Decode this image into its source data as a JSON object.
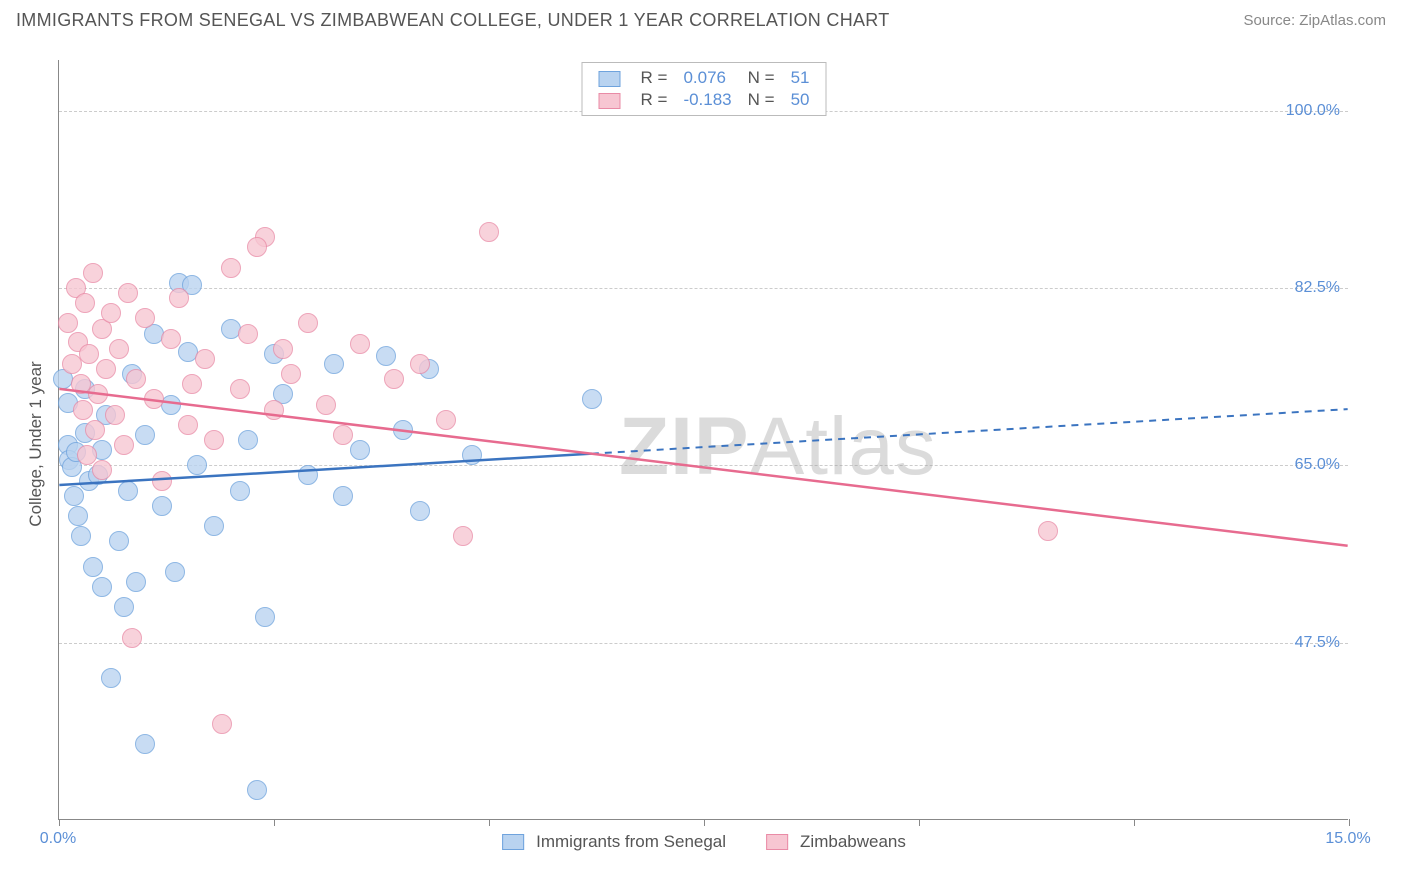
{
  "title": "IMMIGRANTS FROM SENEGAL VS ZIMBABWEAN COLLEGE, UNDER 1 YEAR CORRELATION CHART",
  "source": "Source: ZipAtlas.com",
  "ylabel": "College, Under 1 year",
  "watermark_bold": "ZIP",
  "watermark_rest": "Atlas",
  "chart": {
    "type": "scatter",
    "xlim": [
      0,
      15
    ],
    "ylim": [
      30,
      105
    ],
    "x_tick_positions": [
      0,
      2.5,
      5,
      7.5,
      10,
      12.5,
      15
    ],
    "x_tick_labels": [
      "0.0%",
      "",
      "",
      "",
      "",
      "",
      "15.0%"
    ],
    "y_gridlines": [
      47.5,
      65.0,
      82.5,
      100.0
    ],
    "y_tick_labels": [
      "47.5%",
      "65.0%",
      "82.5%",
      "100.0%"
    ],
    "background_color": "#ffffff",
    "grid_color": "#cccccc",
    "axis_color": "#888888",
    "series": [
      {
        "name": "Immigrants from Senegal",
        "fill": "#b9d3f0",
        "stroke": "#6fa3dd",
        "line_color": "#3b74c0",
        "R": "0.076",
        "N": "51",
        "trend": {
          "x1": 0,
          "y1": 63.0,
          "x2": 15,
          "y2": 70.5,
          "solid_until_x": 6.2
        },
        "points": [
          [
            0.05,
            73.5
          ],
          [
            0.1,
            67.0
          ],
          [
            0.1,
            71.2
          ],
          [
            0.12,
            65.5
          ],
          [
            0.15,
            64.8
          ],
          [
            0.18,
            62.0
          ],
          [
            0.2,
            66.3
          ],
          [
            0.22,
            60.0
          ],
          [
            0.25,
            58.0
          ],
          [
            0.3,
            72.5
          ],
          [
            0.3,
            68.2
          ],
          [
            0.35,
            63.5
          ],
          [
            0.4,
            55.0
          ],
          [
            0.45,
            64.0
          ],
          [
            0.5,
            53.0
          ],
          [
            0.5,
            66.5
          ],
          [
            0.55,
            70.0
          ],
          [
            0.6,
            44.0
          ],
          [
            0.7,
            57.5
          ],
          [
            0.75,
            51.0
          ],
          [
            0.8,
            62.5
          ],
          [
            0.85,
            74.0
          ],
          [
            0.9,
            53.5
          ],
          [
            1.0,
            68.0
          ],
          [
            1.0,
            37.5
          ],
          [
            1.1,
            78.0
          ],
          [
            1.2,
            61.0
          ],
          [
            1.3,
            71.0
          ],
          [
            1.35,
            54.5
          ],
          [
            1.4,
            83.0
          ],
          [
            1.5,
            76.2
          ],
          [
            1.6,
            65.0
          ],
          [
            1.8,
            59.0
          ],
          [
            2.0,
            78.5
          ],
          [
            2.1,
            62.5
          ],
          [
            2.2,
            67.5
          ],
          [
            2.3,
            33.0
          ],
          [
            2.4,
            50.0
          ],
          [
            2.5,
            76.0
          ],
          [
            2.6,
            72.0
          ],
          [
            2.9,
            64.0
          ],
          [
            3.2,
            75.0
          ],
          [
            3.3,
            62.0
          ],
          [
            3.5,
            66.5
          ],
          [
            3.8,
            75.8
          ],
          [
            4.0,
            68.5
          ],
          [
            4.2,
            60.5
          ],
          [
            4.3,
            74.5
          ],
          [
            4.8,
            66.0
          ],
          [
            6.2,
            71.5
          ],
          [
            1.55,
            82.8
          ]
        ]
      },
      {
        "name": "Zimbabweans",
        "fill": "#f7c6d2",
        "stroke": "#e98ba6",
        "line_color": "#e76b8f",
        "R": "-0.183",
        "N": "50",
        "trend": {
          "x1": 0,
          "y1": 72.5,
          "x2": 15,
          "y2": 57.0,
          "solid_until_x": 15
        },
        "points": [
          [
            0.1,
            79.0
          ],
          [
            0.15,
            75.0
          ],
          [
            0.2,
            82.5
          ],
          [
            0.22,
            77.2
          ],
          [
            0.25,
            73.0
          ],
          [
            0.28,
            70.5
          ],
          [
            0.3,
            81.0
          ],
          [
            0.32,
            66.0
          ],
          [
            0.35,
            76.0
          ],
          [
            0.4,
            84.0
          ],
          [
            0.42,
            68.5
          ],
          [
            0.45,
            72.0
          ],
          [
            0.5,
            78.5
          ],
          [
            0.5,
            64.5
          ],
          [
            0.55,
            74.5
          ],
          [
            0.6,
            80.0
          ],
          [
            0.65,
            70.0
          ],
          [
            0.7,
            76.5
          ],
          [
            0.75,
            67.0
          ],
          [
            0.8,
            82.0
          ],
          [
            0.85,
            48.0
          ],
          [
            0.9,
            73.5
          ],
          [
            1.0,
            79.5
          ],
          [
            1.1,
            71.5
          ],
          [
            1.2,
            63.5
          ],
          [
            1.3,
            77.5
          ],
          [
            1.4,
            81.5
          ],
          [
            1.5,
            69.0
          ],
          [
            1.55,
            73.0
          ],
          [
            1.7,
            75.5
          ],
          [
            1.8,
            67.5
          ],
          [
            1.9,
            39.5
          ],
          [
            2.0,
            84.5
          ],
          [
            2.1,
            72.5
          ],
          [
            2.2,
            78.0
          ],
          [
            2.4,
            87.5
          ],
          [
            2.5,
            70.5
          ],
          [
            2.6,
            76.5
          ],
          [
            2.7,
            74.0
          ],
          [
            2.9,
            79.0
          ],
          [
            3.1,
            71.0
          ],
          [
            3.3,
            68.0
          ],
          [
            3.5,
            77.0
          ],
          [
            3.9,
            73.5
          ],
          [
            4.2,
            75.0
          ],
          [
            4.5,
            69.5
          ],
          [
            4.7,
            58.0
          ],
          [
            5.0,
            88.0
          ],
          [
            2.3,
            86.5
          ],
          [
            11.5,
            58.5
          ]
        ]
      }
    ]
  },
  "legend_top_labels": {
    "R": "R",
    "N": "N",
    "eq": "="
  },
  "legend_bottom": [
    {
      "label": "Immigrants from Senegal",
      "fill": "#b9d3f0",
      "stroke": "#6fa3dd"
    },
    {
      "label": "Zimbabweans",
      "fill": "#f7c6d2",
      "stroke": "#e98ba6"
    }
  ]
}
